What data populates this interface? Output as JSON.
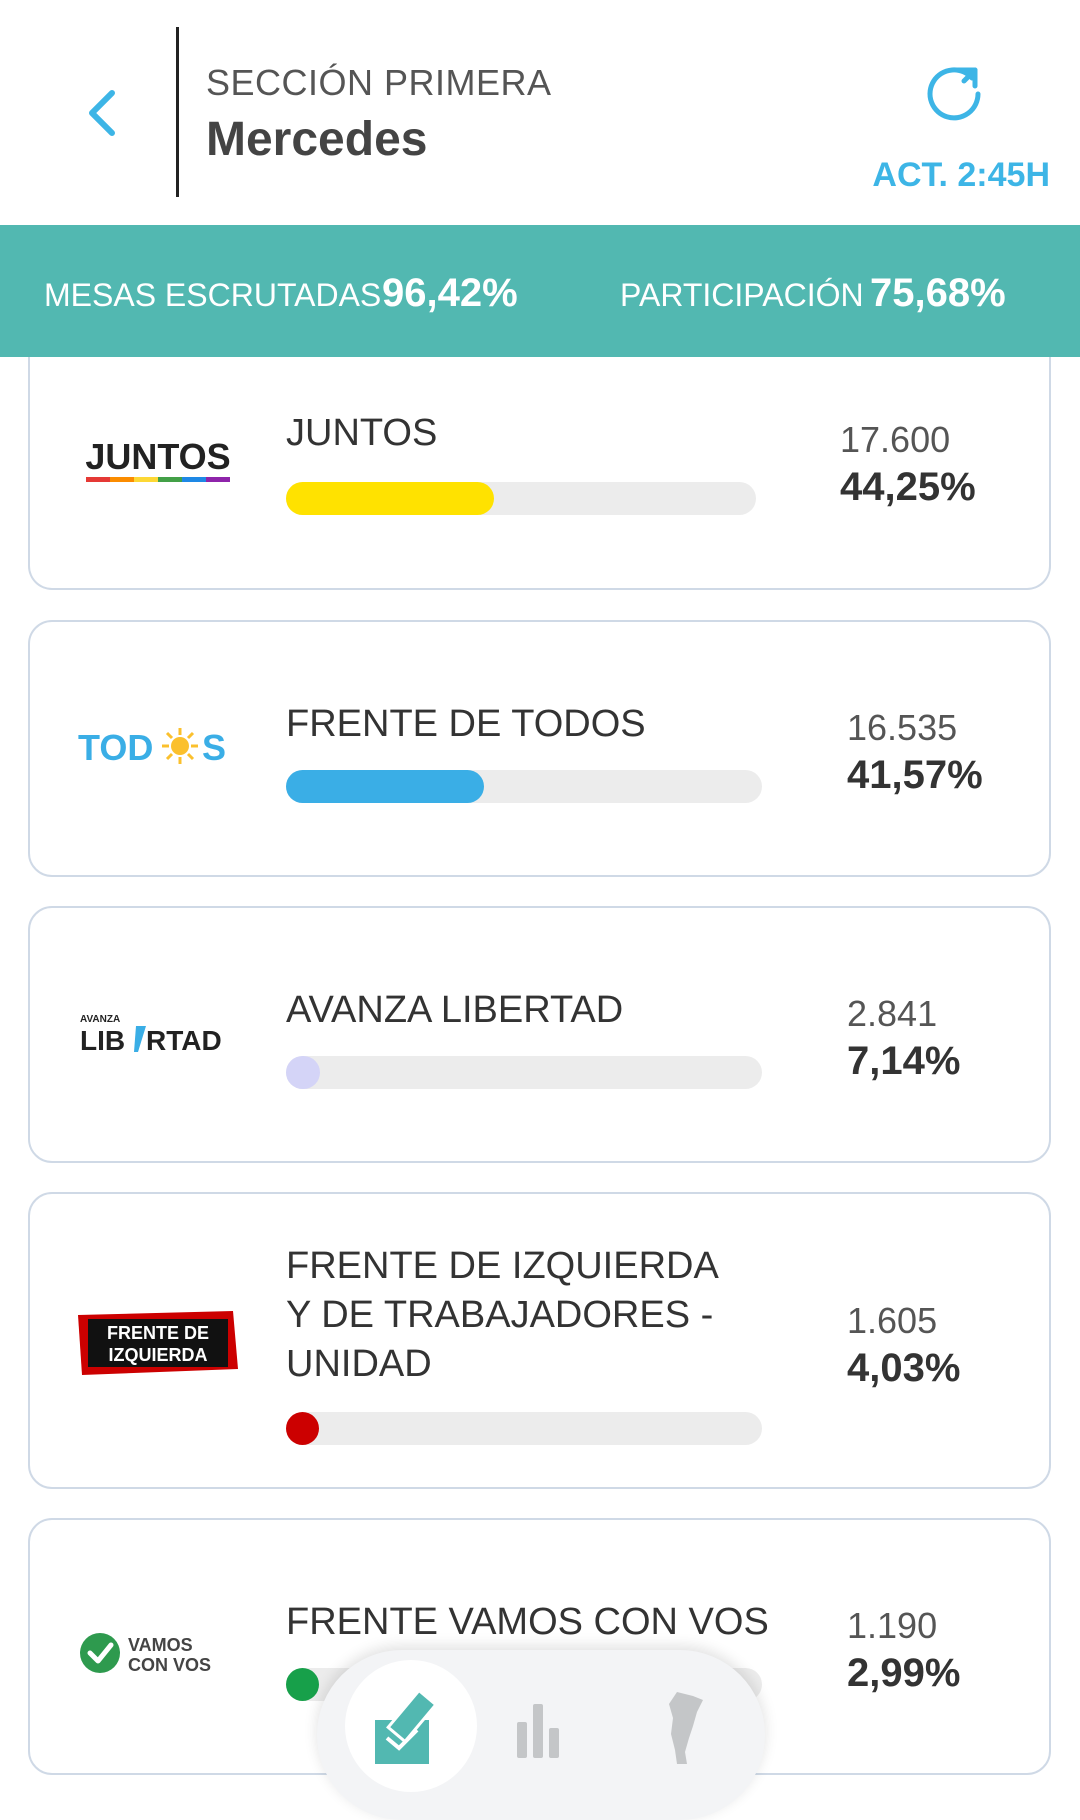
{
  "header": {
    "section": "SECCIÓN PRIMERA",
    "place": "Mercedes",
    "update": "ACT. 2:45H"
  },
  "stats": {
    "mesas_label": "MESAS ESCRUTADAS",
    "mesas_value": "96,42%",
    "participacion_label": "PARTICIPACIÓN",
    "participacion_value": "75,68%"
  },
  "parties": [
    {
      "logo_text": "JUNTOS",
      "name": "JUNTOS",
      "votes": "17.600",
      "pct": "44,25%",
      "share": 44.25,
      "color": "#ffe200"
    },
    {
      "logo_text": "TODOS",
      "name": "FRENTE DE TODOS",
      "votes": "16.535",
      "pct": "41,57%",
      "share": 41.57,
      "color": "#3aaee6"
    },
    {
      "logo_text": "LIBERTAD",
      "logo_small": "AVANZA",
      "name": "AVANZA LIBERTAD",
      "votes": "2.841",
      "pct": "7,14%",
      "share": 7.14,
      "color": "#d4d4f7"
    },
    {
      "logo_text": "FRENTE DE IZQUIERDA",
      "name_lines": [
        "FRENTE DE IZQUIERDA",
        "Y DE TRABAJADORES -",
        "UNIDAD"
      ],
      "votes": "1.605",
      "pct": "4,03%",
      "share": 4.03,
      "color": "#cc0000"
    },
    {
      "logo_text": "VAMOS CON VOS",
      "name": "FRENTE VAMOS CON VOS",
      "votes": "1.190",
      "pct": "2,99%",
      "share": 2.99,
      "color": "#17a04a"
    }
  ],
  "nav": {
    "items": [
      "vote-icon",
      "bar-chart-icon",
      "argentina-map-icon"
    ],
    "active": "vote-icon"
  }
}
